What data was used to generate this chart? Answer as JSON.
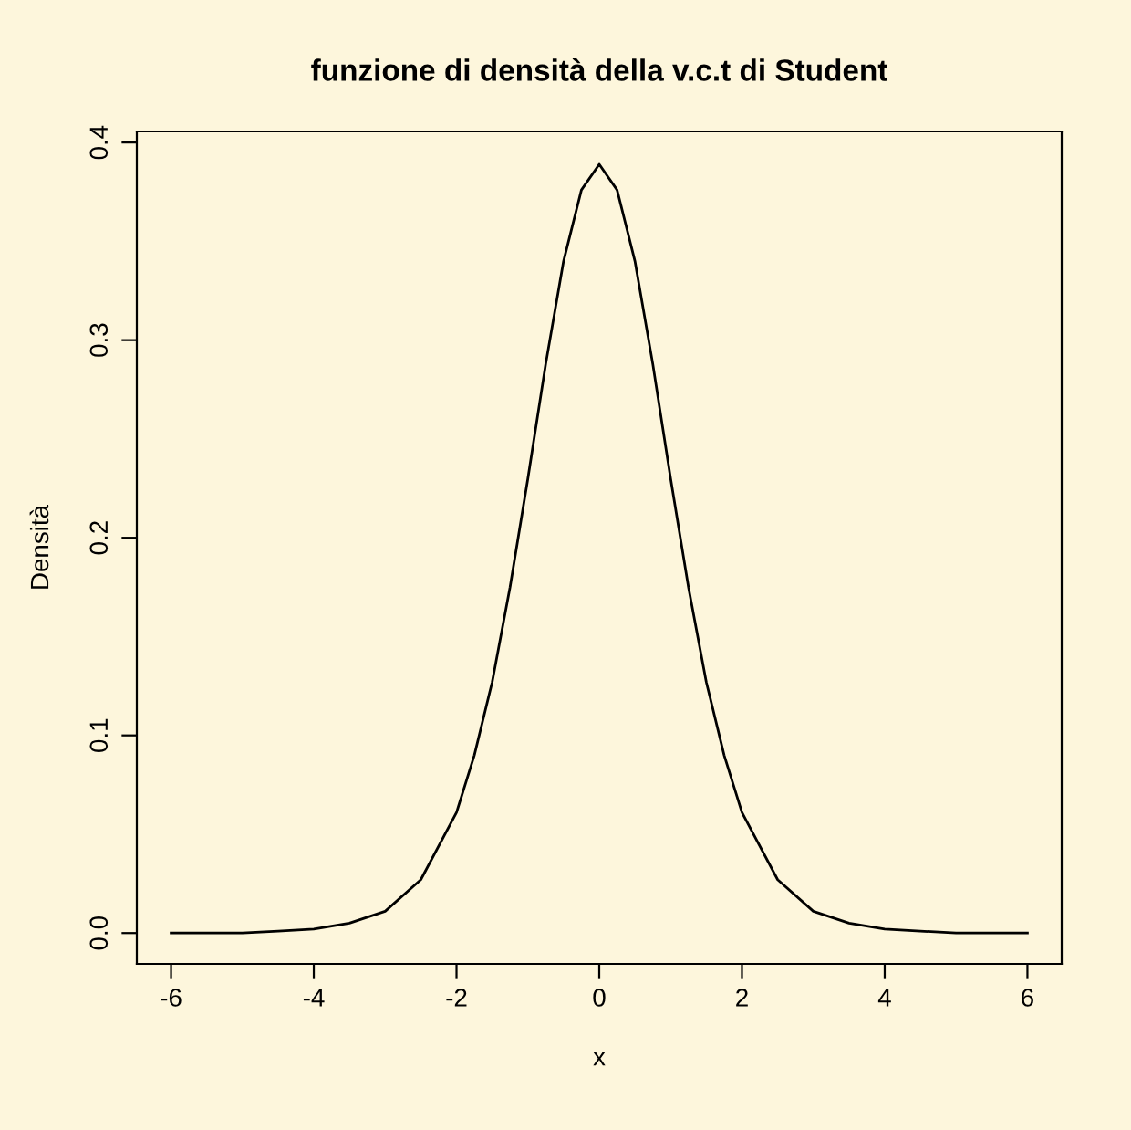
{
  "chart_data": {
    "type": "line",
    "title": "funzione di densità della v.c.t di Student",
    "xlabel": "x",
    "ylabel": "Densità",
    "x": [
      -6,
      -5.5,
      -5,
      -4.5,
      -4,
      -3.5,
      -3,
      -2.5,
      -2,
      -1.75,
      -1.5,
      -1.25,
      -1,
      -0.75,
      -0.5,
      -0.25,
      0,
      0.25,
      0.5,
      0.75,
      1,
      1.25,
      1.5,
      1.75,
      2,
      2.5,
      3,
      3.5,
      4,
      4.5,
      5,
      5.5,
      6
    ],
    "series": [
      {
        "color": "#000000",
        "values": [
          0,
          0,
          0,
          0.001,
          0.002,
          0.005,
          0.011,
          0.027,
          0.061,
          0.09,
          0.127,
          0.175,
          0.23,
          0.288,
          0.34,
          0.376,
          0.389,
          0.376,
          0.34,
          0.288,
          0.23,
          0.175,
          0.127,
          0.09,
          0.061,
          0.027,
          0.011,
          0.005,
          0.002,
          0.001,
          0,
          0,
          0
        ]
      }
    ],
    "xlim": [
      -6.48,
      6.48
    ],
    "ylim": [
      -0.0156,
      0.4056
    ],
    "xticks": [
      -6,
      -4,
      -2,
      0,
      2,
      4,
      6
    ],
    "yticks": [
      {
        "value": 0,
        "label": "0.0"
      },
      0.1,
      0.2,
      0.3,
      0.4
    ],
    "grid": false,
    "marker": "none",
    "line_style": "solid"
  }
}
